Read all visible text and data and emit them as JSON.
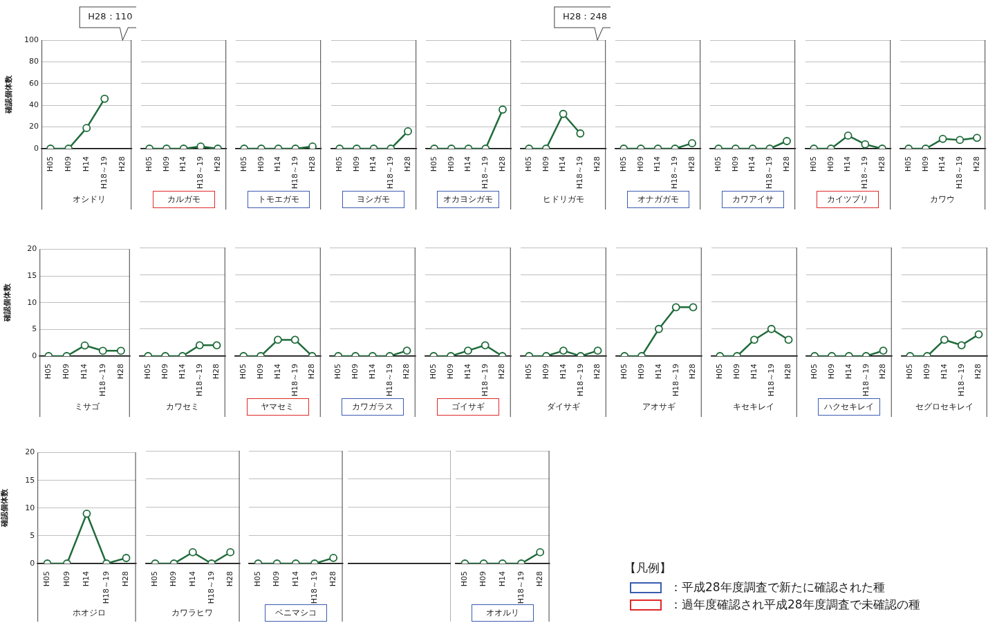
{
  "chart_data": [
    {
      "type": "line",
      "xlabel": "オシドリ",
      "ylabel": "確認個体数",
      "categories": [
        "H05",
        "H09",
        "H14",
        "H18～19",
        "H28"
      ],
      "series": [
        {
          "color": "#1f6b3a",
          "values": [
            0,
            0,
            19,
            46,
            null
          ]
        }
      ],
      "ylim": [
        0,
        100
      ],
      "yticks": [
        0,
        20,
        40,
        60,
        80,
        100
      ],
      "grid": "y",
      "marker": "circle",
      "annotations": [
        "H28：110"
      ]
    },
    {
      "type": "line",
      "xlabel": "カルガモ",
      "categories": [
        "H05",
        "H09",
        "H14",
        "H18～19",
        "H28"
      ],
      "series": [
        {
          "color": "#1f6b3a",
          "values": [
            0,
            0,
            0,
            2,
            0
          ]
        }
      ],
      "ylim": [
        0,
        100
      ],
      "yticks": [
        0,
        20,
        40,
        60,
        80,
        100
      ],
      "grid": "y",
      "marker": "circle",
      "tick_labels": "x"
    },
    {
      "type": "line",
      "xlabel": "トモエガモ",
      "categories": [
        "H05",
        "H09",
        "H14",
        "H18～19",
        "H28"
      ],
      "series": [
        {
          "color": "#1f6b3a",
          "values": [
            0,
            0,
            0,
            0,
            2
          ]
        }
      ],
      "ylim": [
        0,
        100
      ],
      "yticks": [
        0,
        20,
        40,
        60,
        80,
        100
      ],
      "grid": "y",
      "marker": "circle",
      "tick_labels": "x"
    },
    {
      "type": "line",
      "xlabel": "ヨシガモ",
      "categories": [
        "H05",
        "H09",
        "H14",
        "H18～19",
        "H28"
      ],
      "series": [
        {
          "color": "#1f6b3a",
          "values": [
            0,
            0,
            0,
            0,
            16
          ]
        }
      ],
      "ylim": [
        0,
        100
      ],
      "yticks": [
        0,
        20,
        40,
        60,
        80,
        100
      ],
      "grid": "y",
      "marker": "circle",
      "tick_labels": "x"
    },
    {
      "type": "line",
      "xlabel": "オカヨシガモ",
      "categories": [
        "H05",
        "H09",
        "H14",
        "H18～19",
        "H28"
      ],
      "series": [
        {
          "color": "#1f6b3a",
          "values": [
            0,
            0,
            0,
            0,
            36
          ]
        }
      ],
      "ylim": [
        0,
        100
      ],
      "yticks": [
        0,
        20,
        40,
        60,
        80,
        100
      ],
      "grid": "y",
      "marker": "circle",
      "tick_labels": "x"
    },
    {
      "type": "line",
      "xlabel": "ヒドリガモ",
      "categories": [
        "H05",
        "H09",
        "H14",
        "H18～19",
        "H28"
      ],
      "series": [
        {
          "color": "#1f6b3a",
          "values": [
            0,
            0,
            32,
            14,
            null
          ]
        }
      ],
      "ylim": [
        0,
        100
      ],
      "yticks": [
        0,
        20,
        40,
        60,
        80,
        100
      ],
      "grid": "y",
      "marker": "circle",
      "tick_labels": "x",
      "annotations": [
        "H28：248"
      ]
    },
    {
      "type": "line",
      "xlabel": "オナガガモ",
      "categories": [
        "H05",
        "H09",
        "H14",
        "H18～19",
        "H28"
      ],
      "series": [
        {
          "color": "#1f6b3a",
          "values": [
            0,
            0,
            0,
            0,
            5
          ]
        }
      ],
      "ylim": [
        0,
        100
      ],
      "yticks": [
        0,
        20,
        40,
        60,
        80,
        100
      ],
      "grid": "y",
      "marker": "circle",
      "tick_labels": "x"
    },
    {
      "type": "line",
      "xlabel": "カワアイサ",
      "categories": [
        "H05",
        "H09",
        "H14",
        "H18～19",
        "H28"
      ],
      "series": [
        {
          "color": "#1f6b3a",
          "values": [
            0,
            0,
            0,
            0,
            7
          ]
        }
      ],
      "ylim": [
        0,
        100
      ],
      "yticks": [
        0,
        20,
        40,
        60,
        80,
        100
      ],
      "grid": "y",
      "marker": "circle",
      "tick_labels": "x"
    },
    {
      "type": "line",
      "xlabel": "カイツブリ",
      "categories": [
        "H05",
        "H09",
        "H14",
        "H18～19",
        "H28"
      ],
      "series": [
        {
          "color": "#1f6b3a",
          "values": [
            0,
            0,
            12,
            4,
            0
          ]
        }
      ],
      "ylim": [
        0,
        100
      ],
      "yticks": [
        0,
        20,
        40,
        60,
        80,
        100
      ],
      "grid": "y",
      "marker": "circle",
      "tick_labels": "x"
    },
    {
      "type": "line",
      "xlabel": "カワウ",
      "categories": [
        "H05",
        "H09",
        "H14",
        "H18～19",
        "H28"
      ],
      "series": [
        {
          "color": "#1f6b3a",
          "values": [
            0,
            0,
            9,
            8,
            10
          ]
        }
      ],
      "ylim": [
        0,
        100
      ],
      "yticks": [
        0,
        20,
        40,
        60,
        80,
        100
      ],
      "grid": "y",
      "marker": "circle",
      "tick_labels": "x"
    },
    {
      "type": "line",
      "xlabel": "ミサゴ",
      "ylabel": "確認個体数",
      "categories": [
        "H05",
        "H09",
        "H14",
        "H18～19",
        "H28"
      ],
      "series": [
        {
          "color": "#1f6b3a",
          "values": [
            0,
            0,
            2,
            1,
            1
          ]
        }
      ],
      "ylim": [
        0,
        20
      ],
      "yticks": [
        0,
        5,
        10,
        15,
        20
      ],
      "grid": "y",
      "marker": "circle"
    },
    {
      "type": "line",
      "xlabel": "カワセミ",
      "categories": [
        "H05",
        "H09",
        "H14",
        "H18～19",
        "H28"
      ],
      "series": [
        {
          "color": "#1f6b3a",
          "values": [
            0,
            0,
            0,
            2,
            2
          ]
        }
      ],
      "ylim": [
        0,
        20
      ],
      "yticks": [
        0,
        5,
        10,
        15,
        20
      ],
      "grid": "y",
      "marker": "circle",
      "tick_labels": "x"
    },
    {
      "type": "line",
      "xlabel": "ヤマセミ",
      "categories": [
        "H05",
        "H09",
        "H14",
        "H18～19",
        "H28"
      ],
      "series": [
        {
          "color": "#1f6b3a",
          "values": [
            0,
            0,
            3,
            3,
            0
          ]
        }
      ],
      "ylim": [
        0,
        20
      ],
      "yticks": [
        0,
        5,
        10,
        15,
        20
      ],
      "grid": "y",
      "marker": "circle",
      "tick_labels": "x"
    },
    {
      "type": "line",
      "xlabel": "カワガラス",
      "categories": [
        "H05",
        "H09",
        "H14",
        "H18～19",
        "H28"
      ],
      "series": [
        {
          "color": "#1f6b3a",
          "values": [
            0,
            0,
            0,
            0,
            1
          ]
        }
      ],
      "ylim": [
        0,
        20
      ],
      "yticks": [
        0,
        5,
        10,
        15,
        20
      ],
      "grid": "y",
      "marker": "circle",
      "tick_labels": "x"
    },
    {
      "type": "line",
      "xlabel": "ゴイサギ",
      "categories": [
        "H05",
        "H09",
        "H14",
        "H18～19",
        "H28"
      ],
      "series": [
        {
          "color": "#1f6b3a",
          "values": [
            0,
            0,
            1,
            2,
            0
          ]
        }
      ],
      "ylim": [
        0,
        20
      ],
      "yticks": [
        0,
        5,
        10,
        15,
        20
      ],
      "grid": "y",
      "marker": "circle",
      "tick_labels": "x"
    },
    {
      "type": "line",
      "xlabel": "ダイサギ",
      "categories": [
        "H05",
        "H09",
        "H14",
        "H18～19",
        "H28"
      ],
      "series": [
        {
          "color": "#1f6b3a",
          "values": [
            0,
            0,
            1,
            0,
            1
          ]
        }
      ],
      "ylim": [
        0,
        20
      ],
      "yticks": [
        0,
        5,
        10,
        15,
        20
      ],
      "grid": "y",
      "marker": "circle",
      "tick_labels": "x"
    },
    {
      "type": "line",
      "xlabel": "アオサギ",
      "categories": [
        "H05",
        "H09",
        "H14",
        "H18～19",
        "H28"
      ],
      "series": [
        {
          "color": "#1f6b3a",
          "values": [
            0,
            0,
            5,
            9,
            9
          ]
        }
      ],
      "ylim": [
        0,
        20
      ],
      "yticks": [
        0,
        5,
        10,
        15,
        20
      ],
      "grid": "y",
      "marker": "circle",
      "tick_labels": "x"
    },
    {
      "type": "line",
      "xlabel": "キセキレイ",
      "categories": [
        "H05",
        "H09",
        "H14",
        "H18～19",
        "H28"
      ],
      "series": [
        {
          "color": "#1f6b3a",
          "values": [
            0,
            0,
            3,
            5,
            3
          ]
        }
      ],
      "ylim": [
        0,
        20
      ],
      "yticks": [
        0,
        5,
        10,
        15,
        20
      ],
      "grid": "y",
      "marker": "circle",
      "tick_labels": "x"
    },
    {
      "type": "line",
      "xlabel": "ハクセキレイ",
      "categories": [
        "H05",
        "H09",
        "H14",
        "H18～19",
        "H28"
      ],
      "series": [
        {
          "color": "#1f6b3a",
          "values": [
            0,
            0,
            0,
            0,
            1
          ]
        }
      ],
      "ylim": [
        0,
        20
      ],
      "yticks": [
        0,
        5,
        10,
        15,
        20
      ],
      "grid": "y",
      "marker": "circle",
      "tick_labels": "x"
    },
    {
      "type": "line",
      "xlabel": "セグロセキレイ",
      "categories": [
        "H05",
        "H09",
        "H14",
        "H18～19",
        "H28"
      ],
      "series": [
        {
          "color": "#1f6b3a",
          "values": [
            0,
            0,
            3,
            2,
            4
          ]
        }
      ],
      "ylim": [
        0,
        20
      ],
      "yticks": [
        0,
        5,
        10,
        15,
        20
      ],
      "grid": "y",
      "marker": "circle",
      "tick_labels": "x"
    },
    {
      "type": "line",
      "xlabel": "ホオジロ",
      "ylabel": "確認個体数",
      "categories": [
        "H05",
        "H09",
        "H14",
        "H18～19",
        "H28"
      ],
      "series": [
        {
          "color": "#1f6b3a",
          "values": [
            0,
            0,
            9,
            0,
            1
          ]
        }
      ],
      "ylim": [
        0,
        20
      ],
      "yticks": [
        0,
        5,
        10,
        15,
        20
      ],
      "grid": "y",
      "marker": "circle"
    },
    {
      "type": "line",
      "xlabel": "カワラヒワ",
      "categories": [
        "H05",
        "H09",
        "H14",
        "H18～19",
        "H28"
      ],
      "series": [
        {
          "color": "#1f6b3a",
          "values": [
            0,
            0,
            2,
            0,
            2
          ]
        }
      ],
      "ylim": [
        0,
        20
      ],
      "yticks": [
        0,
        5,
        10,
        15,
        20
      ],
      "grid": "y",
      "marker": "circle",
      "tick_labels": "x"
    },
    {
      "type": "line",
      "xlabel": "ベニマシコ",
      "categories": [
        "H05",
        "H09",
        "H14",
        "H18～19",
        "H28"
      ],
      "series": [
        {
          "color": "#1f6b3a",
          "values": [
            0,
            0,
            0,
            0,
            1
          ]
        }
      ],
      "ylim": [
        0,
        20
      ],
      "yticks": [
        0,
        5,
        10,
        15,
        20
      ],
      "grid": "y",
      "marker": "circle",
      "tick_labels": "x"
    },
    {
      "type": "line",
      "categories": [
        null,
        null,
        null,
        null,
        null
      ],
      "series": [
        {
          "color": "#1f6b3a",
          "values": [
            null,
            null,
            null,
            null,
            null
          ]
        }
      ],
      "ylim": [
        0,
        20
      ],
      "yticks": [
        0,
        5,
        10,
        15,
        20
      ],
      "grid": "y",
      "tick_labels": false
    },
    {
      "type": "line",
      "xlabel": "オオルリ",
      "categories": [
        "H05",
        "H09",
        "H14",
        "H18～19",
        "H28"
      ],
      "series": [
        {
          "color": "#1f6b3a",
          "values": [
            0,
            0,
            0,
            0,
            2
          ]
        }
      ],
      "ylim": [
        0,
        20
      ],
      "yticks": [
        0,
        5,
        10,
        15,
        20
      ],
      "grid": "y",
      "marker": "circle",
      "tick_labels": "x"
    },
    {
      "type": "other",
      "title": "【凡例】",
      "categories": [
        "：平成28年度調査で新たに確認された種",
        "：過年度確認され平成28年度調査で未確認の種"
      ],
      "colors": [
        "#3a5bb0",
        "#e02828"
      ]
    }
  ]
}
